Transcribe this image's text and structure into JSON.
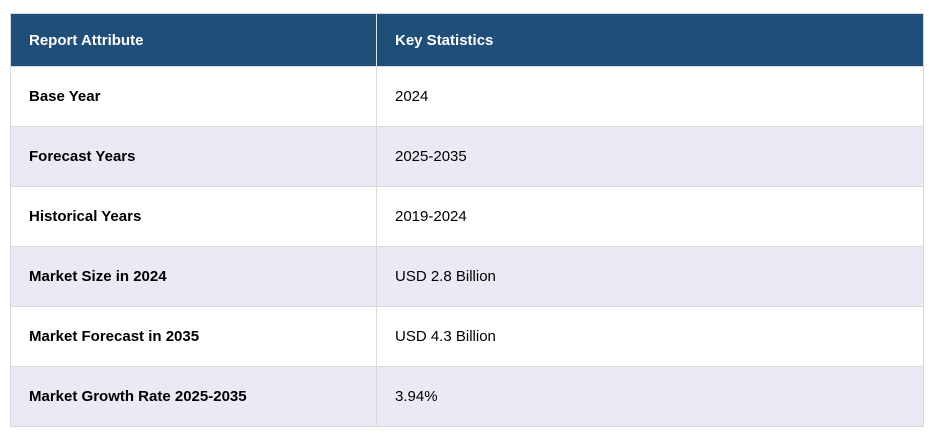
{
  "chart_data": {
    "type": "table",
    "title": "Report Attribute vs Key Statistics summary table",
    "columns": [
      "Report Attribute",
      "Key Statistics"
    ],
    "rows": [
      {
        "attribute": "Base Year",
        "value": "2024"
      },
      {
        "attribute": "Forecast Years",
        "value": "2025-2035"
      },
      {
        "attribute": "Historical Years",
        "value": "2019-2024"
      },
      {
        "attribute": "Market Size in 2024",
        "value": "USD 2.8 Billion"
      },
      {
        "attribute": "Market Forecast in 2035",
        "value": "USD 4.3 Billion"
      },
      {
        "attribute": "Market Growth Rate 2025-2035",
        "value": "3.94%"
      }
    ],
    "layout": {
      "legend": "none",
      "grid": "row-borders",
      "striped_rows": true
    }
  },
  "colors": {
    "header_bg": "#1f4e79",
    "header_text": "#ffffff",
    "row_bg": "#ffffff",
    "row_alt_bg": "#e9eaf4",
    "border": "#d9d9d9",
    "body_text": "#000000"
  }
}
